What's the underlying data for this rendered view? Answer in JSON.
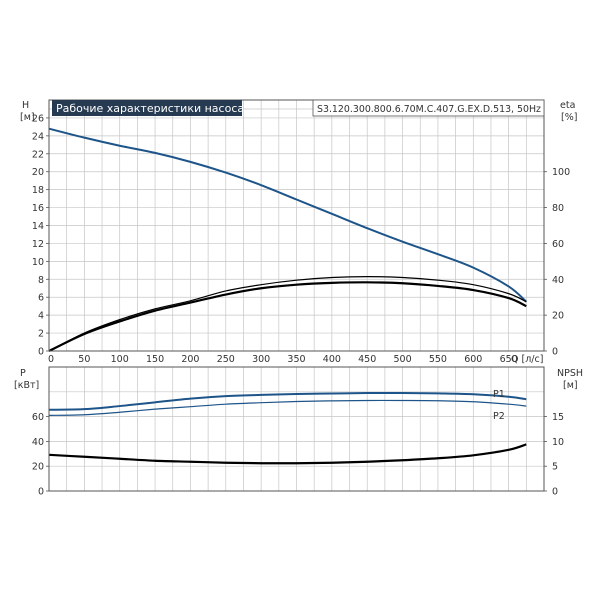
{
  "header": {
    "title": "Рабочие характеристики насоса",
    "model": "S3.120.300.800.6.70M.C.407.G.EX.D.513, 50Hz"
  },
  "colors": {
    "title_bg": "#263a52",
    "title_text": "#ffffff",
    "grid": "#c6c6c6",
    "frame": "#555555",
    "head_curve": "#1d5489",
    "eta_curve": "#000000",
    "power_curve": "#1d5489",
    "npsh_curve": "#000000"
  },
  "chart_data": [
    {
      "id": "upper",
      "type": "line",
      "xlabel": "Q [л/с]",
      "xlim": [
        0,
        700
      ],
      "x_ticks": [
        0,
        50,
        100,
        150,
        200,
        250,
        300,
        350,
        400,
        450,
        500,
        550,
        600,
        650
      ],
      "y_left": {
        "label": "H",
        "unit": "[м]",
        "lim": [
          0,
          28
        ],
        "ticks": [
          0,
          2,
          4,
          6,
          8,
          10,
          12,
          14,
          16,
          18,
          20,
          22,
          24,
          26
        ]
      },
      "y_right": {
        "label": "eta",
        "unit": "[%]",
        "lim": [
          0,
          140
        ],
        "ticks": [
          0,
          20,
          40,
          60,
          80,
          100
        ]
      },
      "grid": true,
      "series": [
        {
          "axis": "left",
          "color": "#1d5489",
          "width": 2,
          "x": [
            0,
            50,
            100,
            150,
            200,
            250,
            300,
            350,
            400,
            450,
            500,
            550,
            600,
            650,
            675
          ],
          "y": [
            24.8,
            23.8,
            22.9,
            22.1,
            21.1,
            19.9,
            18.5,
            16.9,
            15.3,
            13.7,
            12.2,
            10.8,
            9.3,
            7.2,
            5.5
          ]
        },
        {
          "axis": "right",
          "color": "#000000",
          "width": 1.2,
          "x": [
            0,
            50,
            100,
            150,
            200,
            250,
            300,
            350,
            400,
            450,
            500,
            550,
            600,
            650,
            675
          ],
          "y": [
            0,
            10,
            17.5,
            23.5,
            28,
            33.5,
            37,
            39.5,
            41,
            41.5,
            41,
            39.5,
            37,
            32,
            27.5
          ]
        },
        {
          "axis": "right",
          "color": "#000000",
          "width": 2.2,
          "x": [
            0,
            50,
            100,
            150,
            200,
            250,
            300,
            350,
            400,
            450,
            500,
            550,
            600,
            650,
            675
          ],
          "y": [
            0,
            9.5,
            16.5,
            22.5,
            27,
            31.5,
            35,
            37,
            38,
            38.3,
            37.8,
            36.3,
            34,
            29.5,
            25
          ]
        }
      ]
    },
    {
      "id": "lower",
      "type": "line",
      "xlim": [
        0,
        700
      ],
      "x_ticks": [
        0,
        50,
        100,
        150,
        200,
        250,
        300,
        350,
        400,
        450,
        500,
        550,
        600,
        650
      ],
      "y_left": {
        "label": "P",
        "unit": "[кВт]",
        "lim": [
          0,
          100
        ],
        "ticks": [
          0,
          20,
          40,
          60
        ]
      },
      "y_right": {
        "label": "NPSH",
        "unit": "[м]",
        "lim": [
          0,
          25
        ],
        "ticks": [
          0,
          5,
          10,
          15
        ]
      },
      "grid": true,
      "series": [
        {
          "name": "P1",
          "axis": "left",
          "color": "#1d5489",
          "width": 2,
          "x": [
            0,
            50,
            100,
            150,
            200,
            250,
            300,
            350,
            400,
            450,
            500,
            550,
            600,
            650,
            675
          ],
          "y": [
            65.5,
            66,
            68.5,
            71.5,
            74.5,
            76.5,
            77.5,
            78.2,
            78.6,
            79,
            79,
            78.7,
            78,
            76,
            74
          ]
        },
        {
          "name": "P2",
          "axis": "left",
          "color": "#1d5489",
          "width": 1.2,
          "x": [
            0,
            50,
            100,
            150,
            200,
            250,
            300,
            350,
            400,
            450,
            500,
            550,
            600,
            650,
            675
          ],
          "y": [
            61,
            61.5,
            63.5,
            66,
            68,
            70,
            71.2,
            72.2,
            72.7,
            73,
            73,
            72.8,
            72,
            70,
            68.5
          ]
        },
        {
          "axis": "right",
          "color": "#000000",
          "width": 2.2,
          "x": [
            0,
            50,
            100,
            150,
            200,
            250,
            300,
            350,
            400,
            450,
            500,
            550,
            600,
            650,
            675
          ],
          "y": [
            7.3,
            6.9,
            6.5,
            6.1,
            5.9,
            5.7,
            5.6,
            5.6,
            5.7,
            5.9,
            6.2,
            6.6,
            7.2,
            8.3,
            9.4
          ]
        }
      ]
    }
  ]
}
